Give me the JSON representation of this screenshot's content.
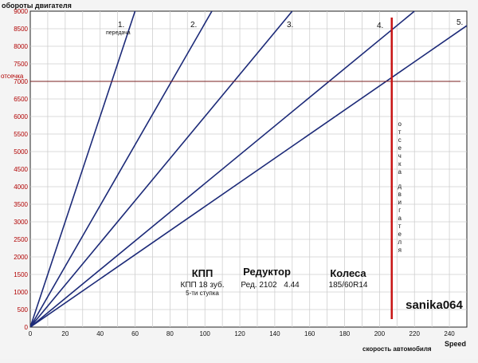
{
  "chart_data": {
    "type": "line",
    "ylabel": "обороты двигателя",
    "xlabel": "скорость автомобиля",
    "xlabel_en": "Speed",
    "xlim": [
      0,
      250
    ],
    "ylim": [
      0,
      9000
    ],
    "x_ticks": [
      0,
      20,
      40,
      60,
      80,
      100,
      120,
      140,
      160,
      180,
      200,
      220,
      240
    ],
    "y_ticks": [
      0,
      500,
      1000,
      1500,
      2000,
      2500,
      3000,
      3500,
      4000,
      4500,
      5000,
      5500,
      6000,
      6500,
      7000,
      7500,
      8000,
      8500,
      9000
    ],
    "grid": true,
    "series": [
      {
        "name": "1.",
        "color": "#1c2a78",
        "points": [
          [
            0,
            0
          ],
          [
            60,
            9000
          ]
        ]
      },
      {
        "name": "2.",
        "color": "#1c2a78",
        "points": [
          [
            0,
            0
          ],
          [
            104,
            9000
          ]
        ]
      },
      {
        "name": "3.",
        "color": "#1c2a78",
        "points": [
          [
            0,
            0
          ],
          [
            150,
            9000
          ]
        ]
      },
      {
        "name": "4.",
        "color": "#1c2a78",
        "points": [
          [
            0,
            0
          ],
          [
            220,
            9000
          ]
        ]
      },
      {
        "name": "5.",
        "color": "#1c2a78",
        "points": [
          [
            0,
            0
          ],
          [
            262,
            9000
          ]
        ]
      }
    ],
    "gear_sublabel": "передача",
    "cutoff": {
      "rpm": 7000,
      "rpm_label": "отсечка",
      "speed": 207,
      "speed_label": "отсечка двигателя",
      "color": "#7a1f1f",
      "vline_color": "#c81414"
    },
    "annotations": {
      "kpp_title": "КПП",
      "kpp_line1": "КПП 18 зуб.",
      "kpp_line2": "5-ти ступка",
      "reducer_title": "Редуктор",
      "reducer_model": "Ред. 2102",
      "reducer_value": "4.44",
      "wheels_title": "Колеса",
      "wheels_size": "185/60R14",
      "author": "sanika064"
    }
  }
}
